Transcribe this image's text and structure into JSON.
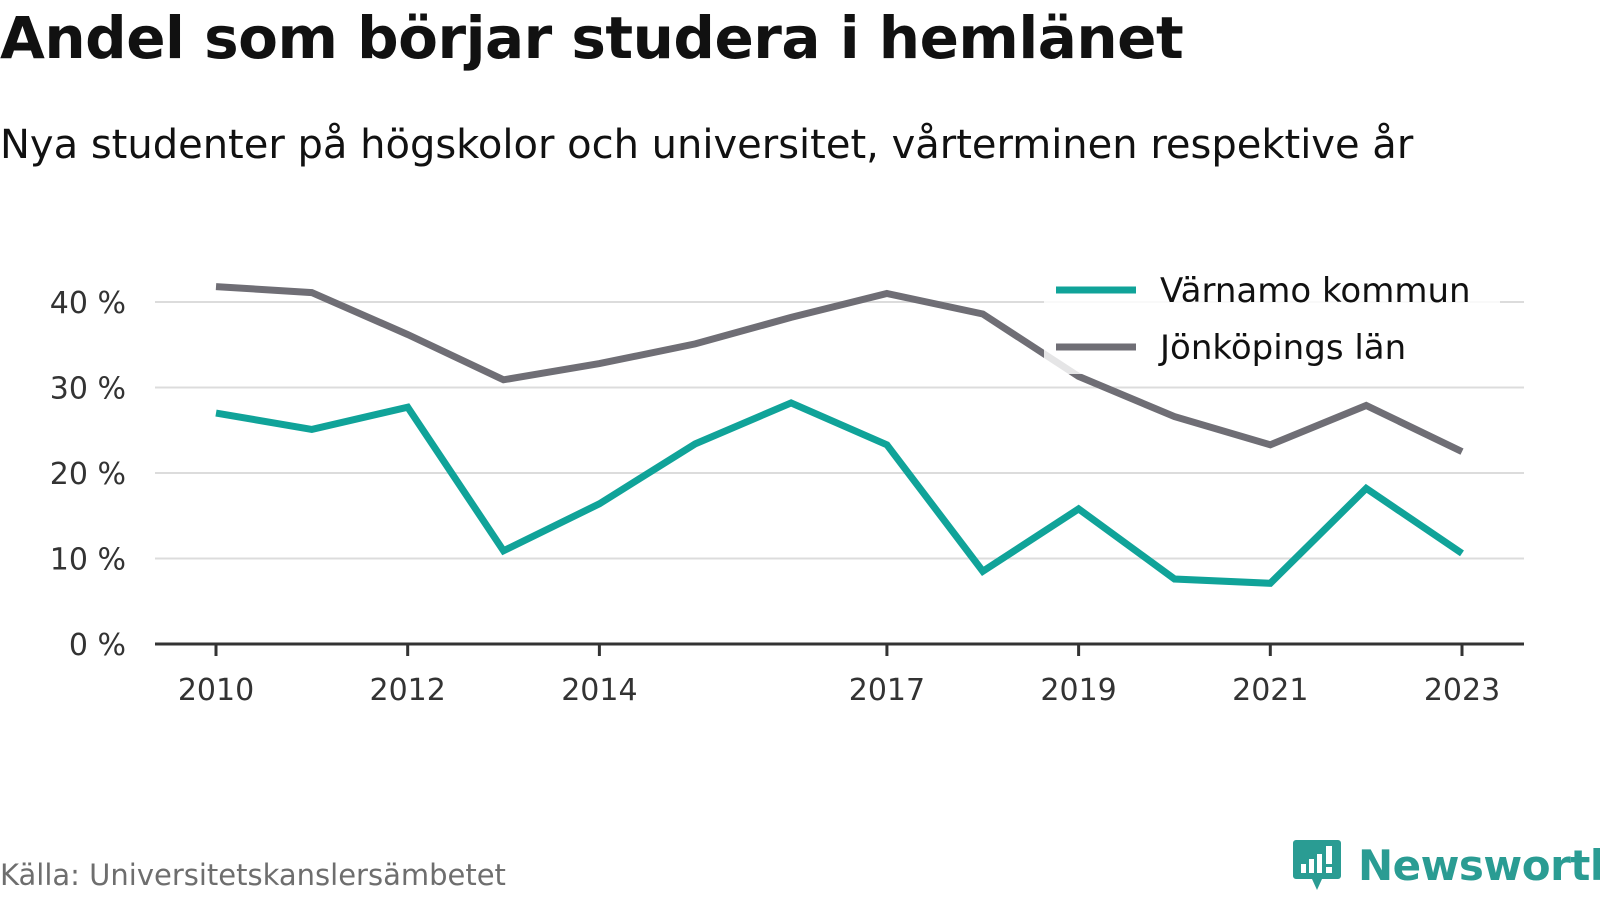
{
  "title": "Andel som börjar studera i hemlänet",
  "subtitle": "Nya studenter på högskolor och universitet, vårterminen respektive år",
  "source": "Källa: Universitetskanslersämbetet",
  "brand": "Newsworthy",
  "chart_data": {
    "type": "line",
    "x": [
      2010,
      2011,
      2012,
      2013,
      2014,
      2015,
      2016,
      2017,
      2018,
      2019,
      2020,
      2021,
      2022,
      2023
    ],
    "x_tick_labels": [
      "2010",
      "2012",
      "2014",
      "2017",
      "2019",
      "2021",
      "2023"
    ],
    "x_tick_values": [
      2010,
      2012,
      2014,
      2017,
      2019,
      2021,
      2023
    ],
    "y_tick_labels": [
      "0 %",
      "10 %",
      "20 %",
      "30 %",
      "40 %"
    ],
    "y_tick_values": [
      0,
      10,
      20,
      30,
      40
    ],
    "ylim": [
      0,
      40
    ],
    "xlim": [
      2010,
      2023
    ],
    "grid": true,
    "legend_position": "top-right",
    "series": [
      {
        "name": "Värnamo kommun",
        "color": "#10a399",
        "values": [
          27.0,
          25.1,
          27.7,
          10.9,
          16.4,
          23.4,
          28.2,
          23.3,
          8.5,
          15.8,
          7.6,
          7.1,
          18.2,
          10.6
        ]
      },
      {
        "name": "Jönköpings län",
        "color": "#6f6e75",
        "values": [
          41.8,
          41.1,
          36.2,
          30.9,
          32.8,
          35.1,
          38.2,
          41.0,
          38.6,
          31.3,
          26.6,
          23.3,
          27.9,
          22.5
        ]
      }
    ]
  }
}
